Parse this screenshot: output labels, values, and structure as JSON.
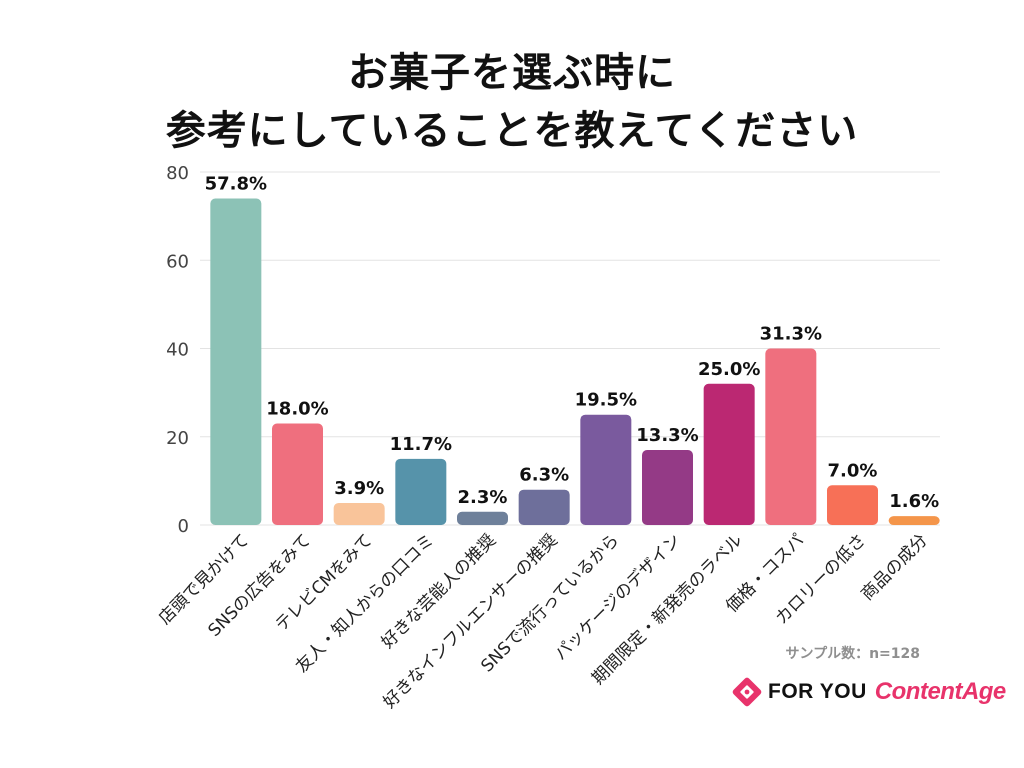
{
  "title": {
    "line1": "お菓子を選ぶ時に",
    "line2": "参考にしていることを教えてください"
  },
  "chart_data": {
    "type": "bar",
    "categories": [
      "店頭で見かけて",
      "SNSの広告をみて",
      "テレビCMをみて",
      "友人・知人からの口コミ",
      "好きな芸能人の推奨",
      "好きなインフルエンサーの推奨",
      "SNSで流行っているから",
      "パッケージのデザイン",
      "期間限定・新発売のラベル",
      "価格・コスパ",
      "カロリーの低さ",
      "商品の成分"
    ],
    "values": [
      74,
      23,
      5,
      15,
      3,
      8,
      25,
      17,
      32,
      40,
      9,
      2
    ],
    "data_labels": [
      "57.8%",
      "18.0%",
      "3.9%",
      "11.7%",
      "2.3%",
      "6.3%",
      "19.5%",
      "13.3%",
      "25.0%",
      "31.3%",
      "7.0%",
      "1.6%"
    ],
    "colors": [
      "#8cc2b6",
      "#ef6f7e",
      "#f9c49a",
      "#5693aa",
      "#6e809a",
      "#6e6f9b",
      "#7a5a9e",
      "#943a86",
      "#bb2872",
      "#ef6f7e",
      "#f77057",
      "#f4954a"
    ],
    "yticks": [
      0,
      20,
      40,
      60,
      80
    ],
    "ylim": [
      0,
      80
    ],
    "grid": true
  },
  "footer": {
    "sample": "サンプル数：n=128",
    "brand1": "FOR YOU",
    "brand2": "ContentAge",
    "logo_icon": "diamond-logo-icon",
    "logo_color": "#e8336b"
  }
}
